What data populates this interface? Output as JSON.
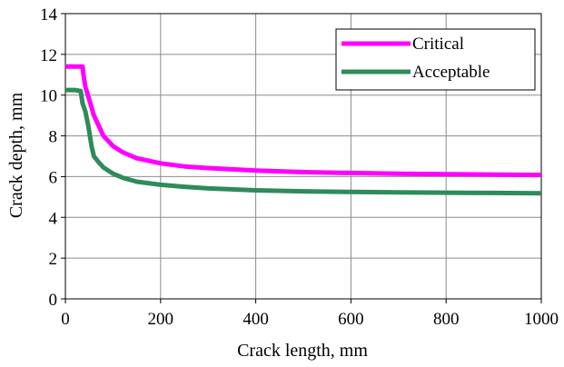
{
  "chart_data": {
    "type": "line",
    "title": "",
    "xlabel": "Crack length, mm",
    "ylabel": "Crack depth, mm",
    "xlim": [
      0,
      1000
    ],
    "ylim": [
      0,
      14
    ],
    "x_ticks": [
      "0",
      "200",
      "400",
      "600",
      "800",
      "1000"
    ],
    "y_ticks": [
      "0",
      "2",
      "4",
      "6",
      "8",
      "10",
      "12",
      "14"
    ],
    "grid": true,
    "legend_position": "top-right",
    "series": [
      {
        "name": "Critical",
        "color": "#ff00ff",
        "points": [
          [
            0,
            11.4
          ],
          [
            20,
            11.4
          ],
          [
            36,
            11.4
          ],
          [
            38,
            11.0
          ],
          [
            42,
            10.4
          ],
          [
            50,
            9.8
          ],
          [
            60,
            9.0
          ],
          [
            70,
            8.5
          ],
          [
            80,
            8.0
          ],
          [
            100,
            7.5
          ],
          [
            120,
            7.2
          ],
          [
            150,
            6.9
          ],
          [
            200,
            6.65
          ],
          [
            250,
            6.5
          ],
          [
            300,
            6.42
          ],
          [
            400,
            6.3
          ],
          [
            500,
            6.22
          ],
          [
            600,
            6.18
          ],
          [
            700,
            6.14
          ],
          [
            800,
            6.12
          ],
          [
            900,
            6.1
          ],
          [
            1000,
            6.08
          ]
        ]
      },
      {
        "name": "Acceptable",
        "color": "#2e8b5a",
        "points": [
          [
            0,
            10.25
          ],
          [
            20,
            10.25
          ],
          [
            32,
            10.2
          ],
          [
            36,
            9.6
          ],
          [
            42,
            9.2
          ],
          [
            48,
            8.5
          ],
          [
            55,
            7.5
          ],
          [
            60,
            7.0
          ],
          [
            70,
            6.7
          ],
          [
            80,
            6.45
          ],
          [
            100,
            6.15
          ],
          [
            120,
            5.95
          ],
          [
            150,
            5.75
          ],
          [
            200,
            5.6
          ],
          [
            250,
            5.5
          ],
          [
            300,
            5.42
          ],
          [
            400,
            5.33
          ],
          [
            500,
            5.28
          ],
          [
            600,
            5.25
          ],
          [
            700,
            5.23
          ],
          [
            800,
            5.21
          ],
          [
            900,
            5.2
          ],
          [
            1000,
            5.18
          ]
        ]
      }
    ]
  }
}
